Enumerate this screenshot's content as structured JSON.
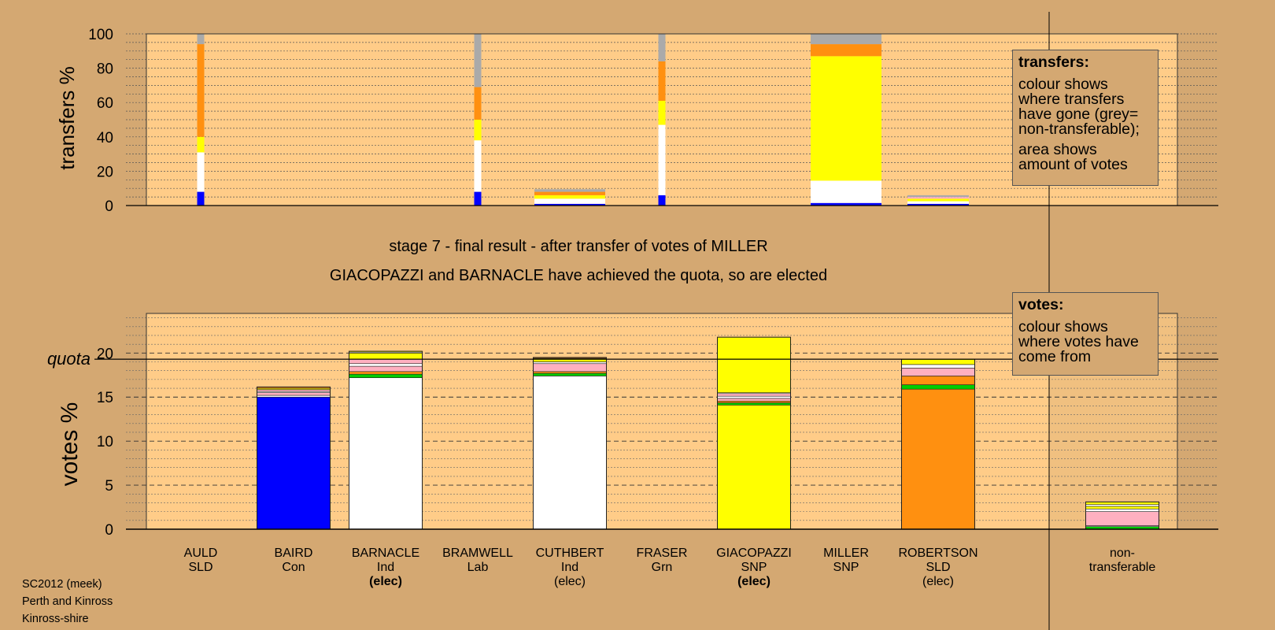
{
  "chart_data": {
    "type": "bar",
    "colors": {
      "AULD": "#FFFFFF",
      "BAIRD": "#0000FF",
      "BARNACLE": "#FFFFFF",
      "BRAMWELL": "#FF0000",
      "CUTHBERT": "#FFFFFF",
      "FRASER": "#00CC00",
      "GIACOPAZZI": "#FFFF00",
      "MILLER": "#FFFF00",
      "ROBERTSON": "#FF9010",
      "LabourOrigin": "#FFB0C0",
      "non-transferable": "#AAAAAA",
      "background_page": "#D4A872",
      "background_plot": "#FFCC88"
    },
    "categories": [
      {
        "name": "AULD",
        "party": "SLD",
        "status": ""
      },
      {
        "name": "BAIRD",
        "party": "Con",
        "status": ""
      },
      {
        "name": "BARNACLE",
        "party": "Ind",
        "status": "(elec)",
        "status_bold": true
      },
      {
        "name": "BRAMWELL",
        "party": "Lab",
        "status": ""
      },
      {
        "name": "CUTHBERT",
        "party": "Ind",
        "status": "(elec)",
        "status_bold": false
      },
      {
        "name": "FRASER",
        "party": "Grn",
        "status": ""
      },
      {
        "name": "GIACOPAZZI",
        "party": "SNP",
        "status": "(elec)",
        "status_bold": true
      },
      {
        "name": "MILLER",
        "party": "SNP",
        "status": ""
      },
      {
        "name": "ROBERTSON",
        "party": "SLD",
        "status": "(elec)",
        "status_bold": false
      },
      {
        "name": "non-\ntransferable",
        "party": "",
        "status": ""
      }
    ],
    "transfers": {
      "ylabel": "transfers %",
      "ylim": [
        0,
        100
      ],
      "yticks": [
        0,
        20,
        40,
        60,
        80,
        100
      ],
      "bars": [
        {
          "category": "AULD",
          "width": "narrow",
          "segments": [
            {
              "color": "#0000FF",
              "value": 8
            },
            {
              "color": "#FFFFFF",
              "value": 23
            },
            {
              "color": "#FFFF00",
              "value": 9
            },
            {
              "color": "#FF9010",
              "value": 54
            },
            {
              "color": "#AAAAAA",
              "value": 6
            }
          ]
        },
        {
          "category": "BRAMWELL",
          "width": "narrow",
          "segments": [
            {
              "color": "#0000FF",
              "value": 8
            },
            {
              "color": "#FFFFFF",
              "value": 30
            },
            {
              "color": "#FFFF00",
              "value": 12
            },
            {
              "color": "#FF9010",
              "value": 19
            },
            {
              "color": "#AAAAAA",
              "value": 31
            }
          ]
        },
        {
          "category": "CUTHBERT",
          "width": "wide",
          "segments": [
            {
              "color": "#0000FF",
              "value": 1
            },
            {
              "color": "#FFFFFF",
              "value": 3
            },
            {
              "color": "#FFFF00",
              "value": 2
            },
            {
              "color": "#FF9010",
              "value": 2
            },
            {
              "color": "#AAAAAA",
              "value": 1.5
            }
          ]
        },
        {
          "category": "FRASER",
          "width": "narrow",
          "segments": [
            {
              "color": "#0000FF",
              "value": 6
            },
            {
              "color": "#FFFFFF",
              "value": 41
            },
            {
              "color": "#FFFF00",
              "value": 14
            },
            {
              "color": "#FF9010",
              "value": 23
            },
            {
              "color": "#AAAAAA",
              "value": 16
            }
          ]
        },
        {
          "category": "MILLER",
          "width": "wide",
          "segments": [
            {
              "color": "#0000FF",
              "value": 1.5
            },
            {
              "color": "#FFFFFF",
              "value": 13
            },
            {
              "color": "#FFFF00",
              "value": 72.5
            },
            {
              "color": "#FF9010",
              "value": 7
            },
            {
              "color": "#AAAAAA",
              "value": 6
            }
          ]
        },
        {
          "category": "ROBERTSON",
          "width": "wide",
          "segments": [
            {
              "color": "#0000FF",
              "value": 1
            },
            {
              "color": "#FFFFFF",
              "value": 1.5
            },
            {
              "color": "#FFFF00",
              "value": 1.5
            },
            {
              "color": "#FFB0C0",
              "value": 1
            },
            {
              "color": "#AAAAAA",
              "value": 1
            }
          ]
        }
      ]
    },
    "votes": {
      "ylabel": "votes %",
      "ylim": [
        0,
        24.5
      ],
      "yticks": [
        0,
        5,
        10,
        15,
        20
      ],
      "quota": 19.3,
      "quota_label": "quota",
      "bars": [
        {
          "category": "BAIRD",
          "segments": [
            {
              "color": "#0000FF",
              "value": 15.0
            },
            {
              "color": "#FFFFFF",
              "value": 0.2
            },
            {
              "color": "#FFB0C0",
              "value": 0.3
            },
            {
              "color": "#FFFFFF",
              "value": 0.15
            },
            {
              "color": "#FFB0C0",
              "value": 0.2
            },
            {
              "color": "#FFFF00",
              "value": 0.15
            },
            {
              "color": "#FF9010",
              "value": 0.15
            }
          ]
        },
        {
          "category": "BARNACLE",
          "segments": [
            {
              "color": "#FFFFFF",
              "value": 17.2
            },
            {
              "color": "#00CC00",
              "value": 0.4
            },
            {
              "color": "#FF9010",
              "value": 0.3
            },
            {
              "color": "#FFB0C0",
              "value": 0.6
            },
            {
              "color": "#FFFFFF",
              "value": 0.3
            },
            {
              "color": "#FFB0C0",
              "value": 0.5
            },
            {
              "color": "#FFFF00",
              "value": 0.7
            },
            {
              "color": "#FFFFFF",
              "value": 0.1
            },
            {
              "color": "#FFFF00",
              "value": 0.1
            }
          ]
        },
        {
          "category": "CUTHBERT",
          "segments": [
            {
              "color": "#FFFFFF",
              "value": 17.4
            },
            {
              "color": "#00CC00",
              "value": 0.3
            },
            {
              "color": "#FF9010",
              "value": 0.2
            },
            {
              "color": "#FFB0C0",
              "value": 0.9
            },
            {
              "color": "#FFFFFF",
              "value": 0.2
            },
            {
              "color": "#FFFF00",
              "value": 0.4
            },
            {
              "color": "#FF9010",
              "value": 0.1
            }
          ]
        },
        {
          "category": "GIACOPAZZI",
          "segments": [
            {
              "color": "#FFFF00",
              "value": 14.1
            },
            {
              "color": "#00CC00",
              "value": 0.25
            },
            {
              "color": "#FF9010",
              "value": 0.2
            },
            {
              "color": "#FFB0C0",
              "value": 0.3
            },
            {
              "color": "#FFFFFF",
              "value": 0.25
            },
            {
              "color": "#FFB0C0",
              "value": 0.3
            },
            {
              "color": "#FFFFFF",
              "value": 0.1
            },
            {
              "color": "#FFFF00",
              "value": 6.3
            }
          ]
        },
        {
          "category": "ROBERTSON",
          "segments": [
            {
              "color": "#FF9010",
              "value": 15.9
            },
            {
              "color": "#00CC00",
              "value": 0.5
            },
            {
              "color": "#FF9010",
              "value": 1.0
            },
            {
              "color": "#FFB0C0",
              "value": 0.9
            },
            {
              "color": "#FFFFFF",
              "value": 0.4
            },
            {
              "color": "#FFFF00",
              "value": 0.6
            }
          ]
        },
        {
          "category": "non-\ntransferable",
          "segments": [
            {
              "color": "#00CC00",
              "value": 0.3
            },
            {
              "color": "#FFFFFF",
              "value": 0.1
            },
            {
              "color": "#FFB0C0",
              "value": 1.6
            },
            {
              "color": "#FFFFFF",
              "value": 0.3
            },
            {
              "color": "#FFFF00",
              "value": 0.3
            },
            {
              "color": "#FFFFFF",
              "value": 0.2
            },
            {
              "color": "#FFFF00",
              "value": 0.3
            }
          ]
        }
      ]
    }
  },
  "captions": {
    "stage": "stage 7 - final result - after transfer of votes of MILLER",
    "elected": "GIACOPAZZI and BARNACLE have achieved the quota, so are elected"
  },
  "legend_transfers": {
    "title": "transfers:",
    "p1": "colour shows where transfers have gone (grey= non-transferable);",
    "p2": "area shows amount of votes"
  },
  "legend_votes": {
    "title": "votes:",
    "p1": "colour shows where votes have come from"
  },
  "footer": {
    "line1": "SC2012 (meek)",
    "line2": "Perth and Kinross",
    "line3": "Kinross-shire"
  }
}
